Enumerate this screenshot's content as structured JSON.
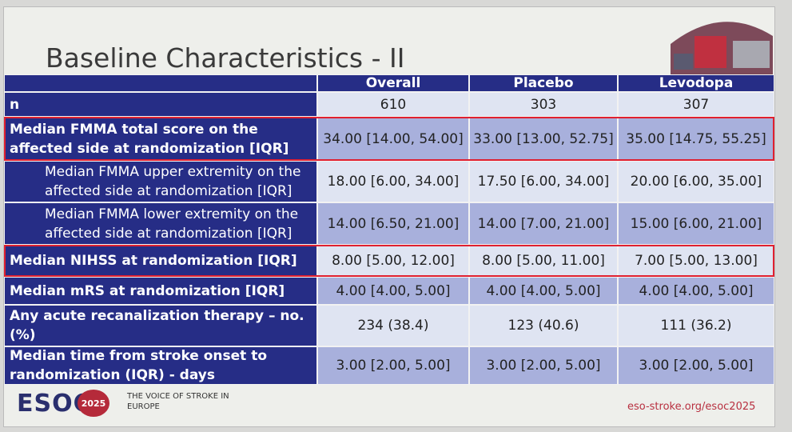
{
  "slide": {
    "title": "Baseline Characteristics - II"
  },
  "table": {
    "header": [
      "Overall",
      "Placebo",
      "Levodopa"
    ],
    "rows": [
      [
        "n",
        "610",
        "303",
        "307"
      ],
      [
        "Median FMMA total score on the affected side at randomization [IQR]",
        "34.00 [14.00, 54.00]",
        "33.00 [13.00, 52.75]",
        "35.00 [14.75, 55.25]"
      ],
      [
        "Median FMMA upper extremity on the affected side at randomization [IQR]",
        "18.00 [6.00, 34.00]",
        "17.50 [6.00, 34.00]",
        "20.00 [6.00, 35.00]"
      ],
      [
        "Median FMMA lower extremity on the affected side at randomization [IQR]",
        "14.00 [6.50, 21.00]",
        "14.00 [7.00, 21.00]",
        "15.00 [6.00, 21.00]"
      ],
      [
        "Median NIHSS at randomization [IQR]",
        "8.00 [5.00, 12.00]",
        "8.00 [5.00, 11.00]",
        "7.00 [5.00, 13.00]"
      ],
      [
        "Median mRS at randomization [IQR]",
        "4.00 [4.00, 5.00]",
        "4.00 [4.00, 5.00]",
        "4.00 [4.00, 5.00]"
      ],
      [
        "Any acute recanalization therapy – no. (%)",
        "234 (38.4)",
        "123 (40.6)",
        "111 (36.2)"
      ],
      [
        "Median time from stroke onset to randomization (IQR) - days",
        "3.00 [2.00, 5.00]",
        "3.00 [2.00, 5.00]",
        "3.00 [2.00, 5.00]"
      ]
    ]
  },
  "footer": {
    "logo": "ESOC",
    "logo_year": "2025",
    "tagline": "THE VOICE OF STROKE IN EUROPE",
    "url": "eso-stroke.org/esoc2025"
  }
}
